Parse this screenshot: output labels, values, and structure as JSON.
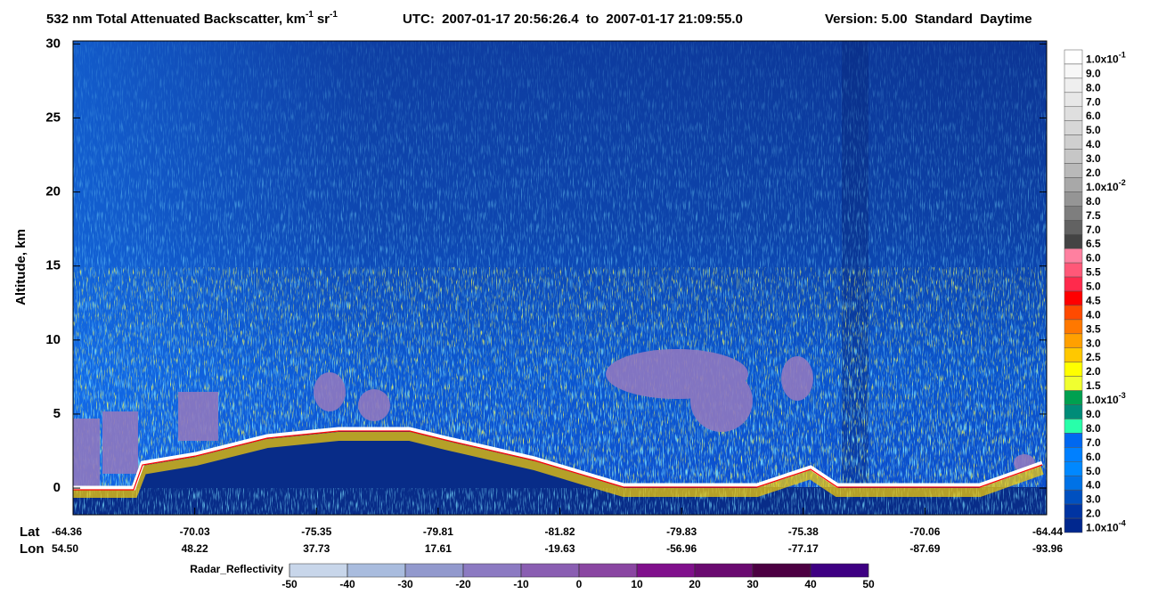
{
  "chart_data": {
    "type": "curtain",
    "title": "532 nm Total Attenuated Backscatter, km",
    "title_exp1": "-1",
    "title_unit2": "sr",
    "title_exp2": "-1",
    "time_range": "UTC:  2007-01-17 20:56:26.4  to  2007-01-17 21:09:55.0",
    "version": "Version: 5.00  Standard  Daytime",
    "y_label": "Altitude, km",
    "ylim": [
      -1.8,
      30.2
    ],
    "yticks": [
      0,
      5,
      10,
      15,
      20,
      25,
      30
    ],
    "lat_label": "Lat",
    "lon_label": "Lon",
    "lat": [
      "-64.36",
      "-70.03",
      "-75.35",
      "-79.81",
      "-81.82",
      "-79.83",
      "-75.38",
      "-70.06",
      "-64.44"
    ],
    "lon": [
      "54.50",
      "48.22",
      "37.73",
      "17.61",
      "-19.63",
      "-56.96",
      "-77.17",
      "-87.69",
      "-93.96"
    ],
    "colorbar": [
      {
        "label": "1.0x10",
        "exp": "-1",
        "color": "#ffffff"
      },
      {
        "label": "9.0",
        "color": "#f7f7f7"
      },
      {
        "label": "8.0",
        "color": "#efefef"
      },
      {
        "label": "7.0",
        "color": "#e7e7e7"
      },
      {
        "label": "6.0",
        "color": "#dfdfdf"
      },
      {
        "label": "5.0",
        "color": "#d7d7d7"
      },
      {
        "label": "4.0",
        "color": "#cfcfcf"
      },
      {
        "label": "3.0",
        "color": "#c6c6c6"
      },
      {
        "label": "2.0",
        "color": "#b9b9b9"
      },
      {
        "label": "1.0x10",
        "exp": "-2",
        "color": "#a8a8a8"
      },
      {
        "label": "8.0",
        "color": "#959595"
      },
      {
        "label": "7.5",
        "color": "#7e7e7e"
      },
      {
        "label": "7.0",
        "color": "#626262"
      },
      {
        "label": "6.5",
        "color": "#444444"
      },
      {
        "label": "6.0",
        "color": "#ff80a0"
      },
      {
        "label": "5.5",
        "color": "#ff5878"
      },
      {
        "label": "5.0",
        "color": "#ff2a4c"
      },
      {
        "label": "4.5",
        "color": "#ff0000"
      },
      {
        "label": "4.0",
        "color": "#ff4a00"
      },
      {
        "label": "3.5",
        "color": "#ff7800"
      },
      {
        "label": "3.0",
        "color": "#ffa000"
      },
      {
        "label": "2.5",
        "color": "#ffc800"
      },
      {
        "label": "2.0",
        "color": "#ffff00"
      },
      {
        "label": "1.5",
        "color": "#f0ff30"
      },
      {
        "label": "1.0x10",
        "exp": "-3",
        "color": "#00a050"
      },
      {
        "label": "9.0",
        "color": "#008c78"
      },
      {
        "label": "8.0",
        "color": "#28ffaa"
      },
      {
        "label": "7.0",
        "color": "#0068f0"
      },
      {
        "label": "6.0",
        "color": "#0080ff"
      },
      {
        "label": "5.0",
        "color": "#0088ff"
      },
      {
        "label": "4.0",
        "color": "#0072e6"
      },
      {
        "label": "3.0",
        "color": "#0050c0"
      },
      {
        "label": "2.0",
        "color": "#0034a2"
      },
      {
        "label": "1.0x10",
        "exp": "-4",
        "color": "#00278e"
      }
    ],
    "radar_label": "Radar_Reflectivity",
    "radar_ticks": [
      -50,
      -40,
      -30,
      -20,
      -10,
      0,
      10,
      20,
      30,
      40,
      50
    ],
    "radar_colors": [
      "#c8d6ea",
      "#a9bcde",
      "#9299cd",
      "#8c7ac2",
      "#8a5eb2",
      "#8a46a2",
      "#80108c",
      "#6a0a70",
      "#4c0042",
      "#3e0082"
    ]
  }
}
